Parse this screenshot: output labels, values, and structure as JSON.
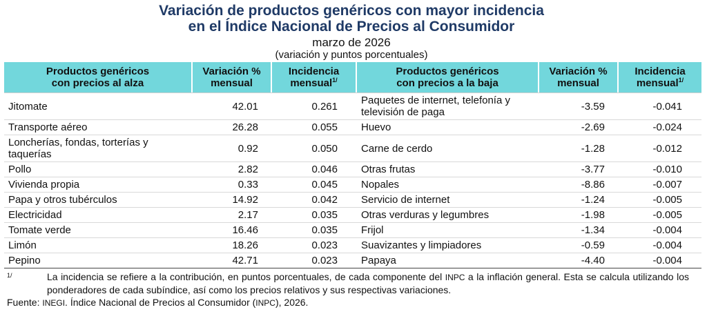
{
  "header": {
    "title_line1": "Variación de productos genéricos con mayor incidencia",
    "title_line2": "en el Índice Nacional de Precios al Consumidor",
    "period": "marzo de 2026",
    "units": "(variación y puntos porcentuales)"
  },
  "table": {
    "headers": {
      "up_products_l1": "Productos genéricos",
      "up_products_l2": "con precios al alza",
      "var_l1": "Variación %",
      "var_l2": "mensual",
      "inc_l1": "Incidencia",
      "inc_l2": "mensual",
      "inc_mark": "1/",
      "down_products_l1": "Productos genéricos",
      "down_products_l2": "con precios a la baja"
    },
    "rows": [
      {
        "up_name": "Jitomate",
        "up_var": "42.01",
        "up_inc": "0.261",
        "down_name": "Paquetes de internet, telefonía y televisión de paga",
        "down_var": "-3.59",
        "down_inc": "-0.041"
      },
      {
        "up_name": "Transporte aéreo",
        "up_var": "26.28",
        "up_inc": "0.055",
        "down_name": "Huevo",
        "down_var": "-2.69",
        "down_inc": "-0.024"
      },
      {
        "up_name": "Loncherías, fondas, torterías y taquerías",
        "up_var": "0.92",
        "up_inc": "0.050",
        "down_name": "Carne de cerdo",
        "down_var": "-1.28",
        "down_inc": "-0.012"
      },
      {
        "up_name": "Pollo",
        "up_var": "2.82",
        "up_inc": "0.046",
        "down_name": "Otras frutas",
        "down_var": "-3.77",
        "down_inc": "-0.010"
      },
      {
        "up_name": "Vivienda propia",
        "up_var": "0.33",
        "up_inc": "0.045",
        "down_name": "Nopales",
        "down_var": "-8.86",
        "down_inc": "-0.007"
      },
      {
        "up_name": "Papa y otros tubérculos",
        "up_var": "14.92",
        "up_inc": "0.042",
        "down_name": "Servicio de internet",
        "down_var": "-1.24",
        "down_inc": "-0.005"
      },
      {
        "up_name": "Electricidad",
        "up_var": "2.17",
        "up_inc": "0.035",
        "down_name": "Otras verduras y legumbres",
        "down_var": "-1.98",
        "down_inc": "-0.005"
      },
      {
        "up_name": "Tomate verde",
        "up_var": "16.46",
        "up_inc": "0.035",
        "down_name": "Frijol",
        "down_var": "-1.34",
        "down_inc": "-0.004"
      },
      {
        "up_name": "Limón",
        "up_var": "18.26",
        "up_inc": "0.023",
        "down_name": "Suavizantes y limpiadores",
        "down_var": "-0.59",
        "down_inc": "-0.004"
      },
      {
        "up_name": "Pepino",
        "up_var": "42.71",
        "up_inc": "0.023",
        "down_name": "Papaya",
        "down_var": "-4.40",
        "down_inc": "-0.004"
      }
    ]
  },
  "footnote": {
    "mark": "1/",
    "text_a": "La incidencia se refiere a la contribución, en puntos porcentuales, de cada componente del ",
    "text_abbr": "INPC",
    "text_b": " a la inflación general. Esta se calcula utilizando los ponderadores de cada subíndice, así como los precios relativos y sus respectivas variaciones."
  },
  "source": {
    "label": "Fuente: ",
    "org": "INEGI",
    "text_a": ". Índice Nacional de Precios al Consumidor (",
    "abbr": "INPC",
    "text_b": "), 2026."
  }
}
